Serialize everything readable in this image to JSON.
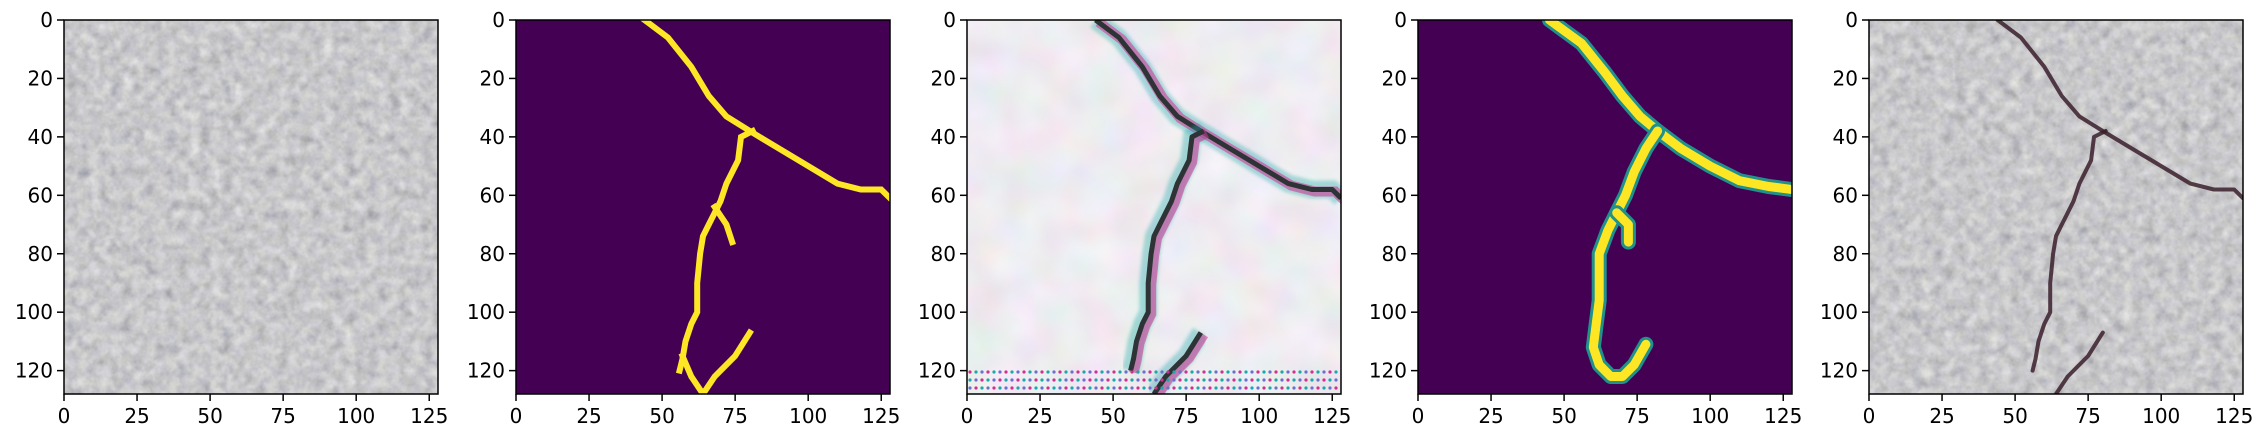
{
  "chart_data": [
    {
      "type": "image",
      "content": "asphalt pavement texture (input image)",
      "x_ticks": [
        "0",
        "25",
        "50",
        "75",
        "100",
        "125"
      ],
      "y_ticks": [
        "0",
        "20",
        "40",
        "60",
        "80",
        "100",
        "120"
      ],
      "xlim": [
        0,
        128
      ],
      "ylim": [
        128,
        0
      ]
    },
    {
      "type": "heatmap",
      "content": "binary crack mask (ground truth)",
      "colormap": "viridis",
      "colors": {
        "background": "#440154",
        "crack": "#fde725"
      },
      "x_ticks": [
        "0",
        "25",
        "50",
        "75",
        "100",
        "125"
      ],
      "y_ticks": [
        "0",
        "20",
        "40",
        "60",
        "80",
        "100",
        "120"
      ],
      "xlim": [
        0,
        128
      ],
      "ylim": [
        128,
        0
      ],
      "crack_paths": [
        [
          [
            44,
            0
          ],
          [
            52,
            6
          ],
          [
            60,
            16
          ],
          [
            66,
            26
          ],
          [
            72,
            33
          ],
          [
            80,
            38
          ],
          [
            90,
            44
          ],
          [
            100,
            50
          ],
          [
            110,
            56
          ],
          [
            118,
            58
          ],
          [
            125,
            58
          ],
          [
            128,
            61
          ]
        ],
        [
          [
            81,
            38
          ],
          [
            77,
            40
          ],
          [
            76,
            48
          ],
          [
            72,
            56
          ],
          [
            70,
            62
          ],
          [
            68,
            66
          ],
          [
            66,
            70
          ],
          [
            64,
            74
          ],
          [
            63,
            80
          ],
          [
            62,
            90
          ],
          [
            62,
            100
          ],
          [
            60,
            104
          ],
          [
            58,
            110
          ],
          [
            57,
            116
          ],
          [
            56,
            120
          ]
        ],
        [
          [
            68,
            64
          ],
          [
            72,
            70
          ],
          [
            74,
            76
          ]
        ],
        [
          [
            57,
            115
          ],
          [
            60,
            122
          ],
          [
            64,
            128
          ]
        ],
        [
          [
            80,
            107
          ],
          [
            75,
            115
          ],
          [
            68,
            122
          ],
          [
            64,
            128
          ]
        ]
      ]
    },
    {
      "type": "image",
      "content": "intermediate feature visualization with crack edges",
      "colors": {
        "background": "#e4dde6",
        "edge_dark": "#2e3436",
        "edge_magenta": "#d0308f",
        "edge_cyan": "#1aa8a8"
      },
      "x_ticks": [
        "0",
        "25",
        "50",
        "75",
        "100",
        "125"
      ],
      "y_ticks": [
        "0",
        "20",
        "40",
        "60",
        "80",
        "100",
        "120"
      ],
      "xlim": [
        0,
        128
      ],
      "ylim": [
        128,
        0
      ],
      "crack_paths": [
        [
          [
            44,
            0
          ],
          [
            52,
            6
          ],
          [
            60,
            16
          ],
          [
            66,
            26
          ],
          [
            72,
            33
          ],
          [
            80,
            38
          ],
          [
            90,
            44
          ],
          [
            100,
            50
          ],
          [
            110,
            56
          ],
          [
            118,
            58
          ],
          [
            125,
            58
          ],
          [
            128,
            61
          ]
        ],
        [
          [
            81,
            38
          ],
          [
            77,
            40
          ],
          [
            76,
            48
          ],
          [
            72,
            56
          ],
          [
            70,
            62
          ],
          [
            68,
            66
          ],
          [
            66,
            70
          ],
          [
            64,
            74
          ],
          [
            63,
            80
          ],
          [
            62,
            90
          ],
          [
            62,
            100
          ],
          [
            60,
            104
          ],
          [
            58,
            110
          ],
          [
            57,
            116
          ],
          [
            56,
            120
          ]
        ],
        [
          [
            80,
            107
          ],
          [
            75,
            115
          ],
          [
            68,
            122
          ],
          [
            64,
            128
          ]
        ]
      ]
    },
    {
      "type": "heatmap",
      "content": "predicted crack mask",
      "colormap": "viridis",
      "colors": {
        "background": "#440154",
        "crack": "#fde725",
        "edge": "#21918c"
      },
      "x_ticks": [
        "0",
        "25",
        "50",
        "75",
        "100",
        "125"
      ],
      "y_ticks": [
        "0",
        "20",
        "40",
        "60",
        "80",
        "100",
        "120"
      ],
      "xlim": [
        0,
        128
      ],
      "ylim": [
        128,
        0
      ],
      "crack_paths": [
        [
          [
            45,
            0
          ],
          [
            56,
            8
          ],
          [
            64,
            18
          ],
          [
            70,
            26
          ],
          [
            76,
            33
          ],
          [
            82,
            38
          ],
          [
            90,
            44
          ],
          [
            100,
            50
          ],
          [
            110,
            55
          ],
          [
            120,
            57
          ],
          [
            128,
            58
          ]
        ],
        [
          [
            82,
            38
          ],
          [
            78,
            44
          ],
          [
            74,
            52
          ],
          [
            71,
            60
          ],
          [
            68,
            66
          ],
          [
            65,
            72
          ],
          [
            62,
            80
          ],
          [
            62,
            88
          ],
          [
            62,
            96
          ],
          [
            61,
            104
          ],
          [
            60,
            112
          ],
          [
            62,
            118
          ],
          [
            66,
            122
          ],
          [
            70,
            122
          ],
          [
            74,
            118
          ],
          [
            78,
            111
          ]
        ],
        [
          [
            68,
            66
          ],
          [
            72,
            70
          ],
          [
            72,
            76
          ]
        ]
      ]
    },
    {
      "type": "image",
      "content": "asphalt pavement with predicted crack overlay",
      "colors": {
        "overlay": "#3a1f2a"
      },
      "x_ticks": [
        "0",
        "25",
        "50",
        "75",
        "100",
        "125"
      ],
      "y_ticks": [
        "0",
        "20",
        "40",
        "60",
        "80",
        "100",
        "120"
      ],
      "xlim": [
        0,
        128
      ],
      "ylim": [
        128,
        0
      ],
      "crack_paths": [
        [
          [
            44,
            0
          ],
          [
            52,
            6
          ],
          [
            60,
            16
          ],
          [
            66,
            26
          ],
          [
            72,
            33
          ],
          [
            80,
            38
          ],
          [
            90,
            44
          ],
          [
            100,
            50
          ],
          [
            110,
            56
          ],
          [
            118,
            58
          ],
          [
            125,
            58
          ],
          [
            128,
            61
          ]
        ],
        [
          [
            81,
            38
          ],
          [
            77,
            40
          ],
          [
            76,
            48
          ],
          [
            72,
            56
          ],
          [
            70,
            62
          ],
          [
            68,
            66
          ],
          [
            66,
            70
          ],
          [
            64,
            74
          ],
          [
            63,
            80
          ],
          [
            62,
            90
          ],
          [
            62,
            100
          ],
          [
            60,
            104
          ],
          [
            58,
            110
          ],
          [
            57,
            116
          ],
          [
            56,
            120
          ]
        ],
        [
          [
            80,
            107
          ],
          [
            75,
            115
          ],
          [
            68,
            122
          ],
          [
            64,
            128
          ]
        ]
      ]
    }
  ]
}
